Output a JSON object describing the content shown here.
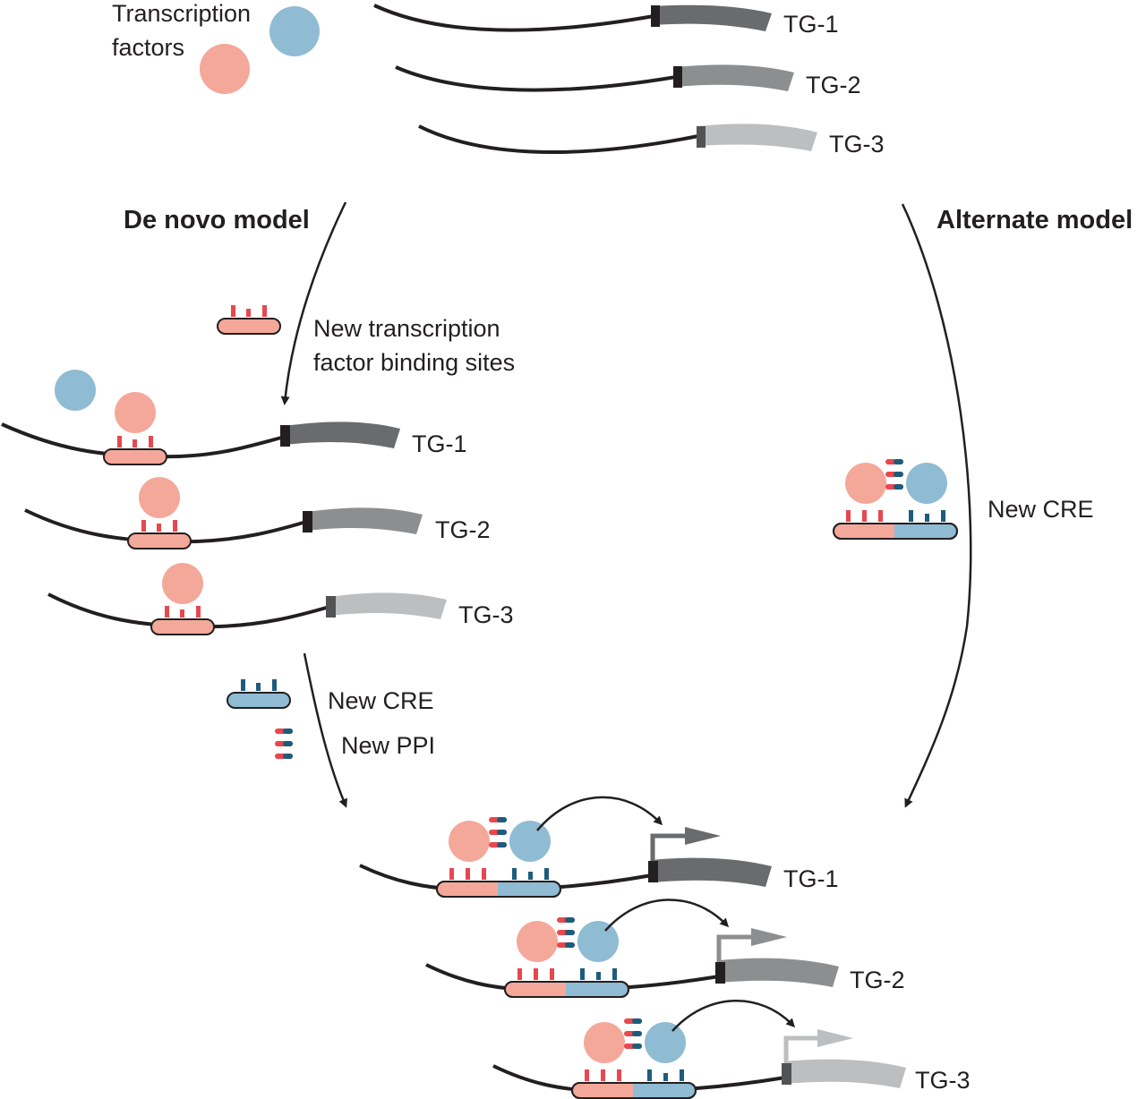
{
  "legend": {
    "line1": "Transcription",
    "line2": "factors"
  },
  "genes": [
    "TG-1",
    "TG-2",
    "TG-3"
  ],
  "models": {
    "de_novo": "De novo model",
    "alternate": "Alternate model"
  },
  "steps": {
    "new_tfbs_line1": "New transcription",
    "new_tfbs_line2": "factor binding sites",
    "new_cre": "New CRE",
    "new_ppi": "New PPI"
  },
  "colors": {
    "tf_pink": "#f4a89a",
    "tf_blue": "#8fbcd3",
    "site_red": "#e8474f",
    "site_blue": "#1d5c7c",
    "dna": "#231f20",
    "gene_1": "#6a6b6d",
    "gene_2": "#8d8e90",
    "gene_3": "#bdbec0"
  }
}
